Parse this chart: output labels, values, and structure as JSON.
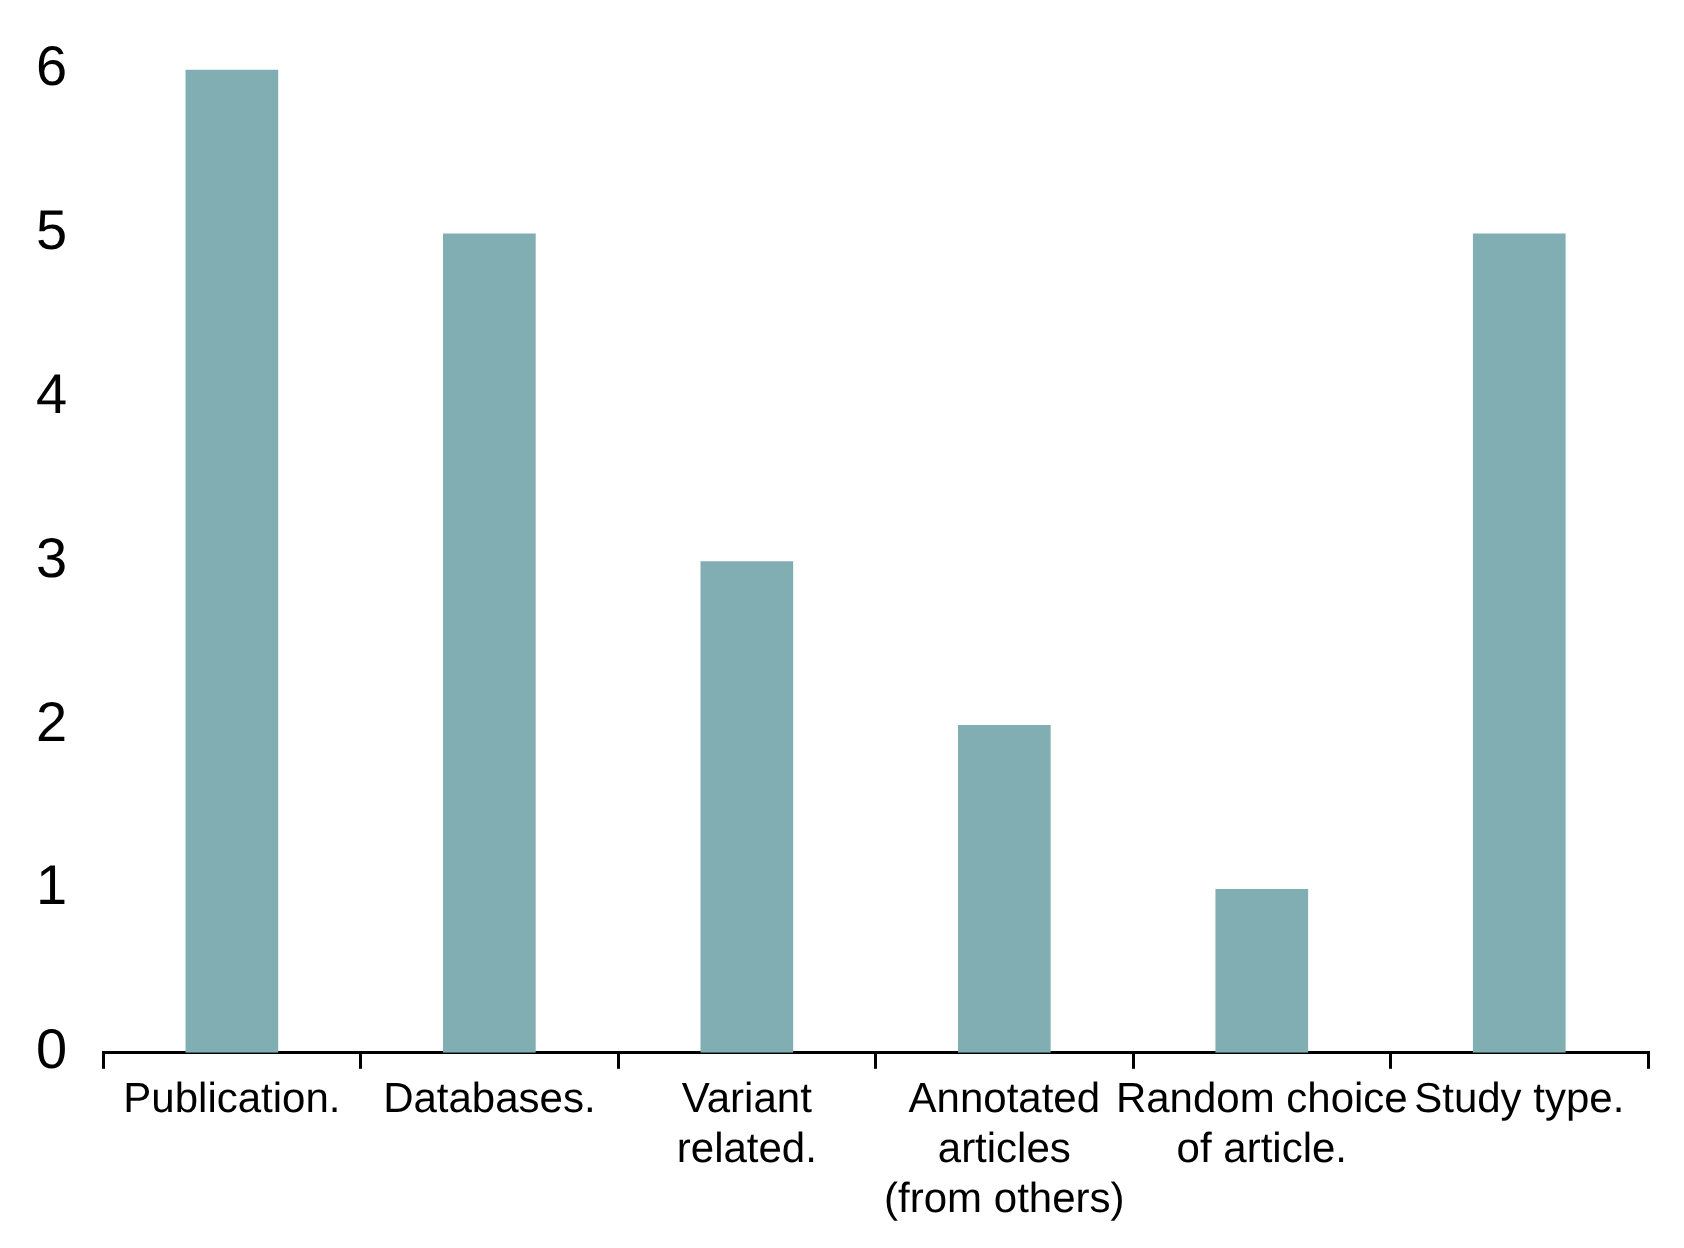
{
  "chart_data": {
    "type": "bar",
    "categories": [
      "Publication.",
      "Databases.",
      "Variant related.",
      "Annotated articles (from others)",
      "Random choice of article.",
      "Study type."
    ],
    "values": [
      6,
      5,
      3,
      2,
      1,
      5
    ],
    "color": "#80aeb3",
    "ylim": [
      0,
      6
    ],
    "yticks": [
      0,
      1,
      2,
      3,
      4,
      5,
      6
    ],
    "grid": false,
    "legend": false
  }
}
